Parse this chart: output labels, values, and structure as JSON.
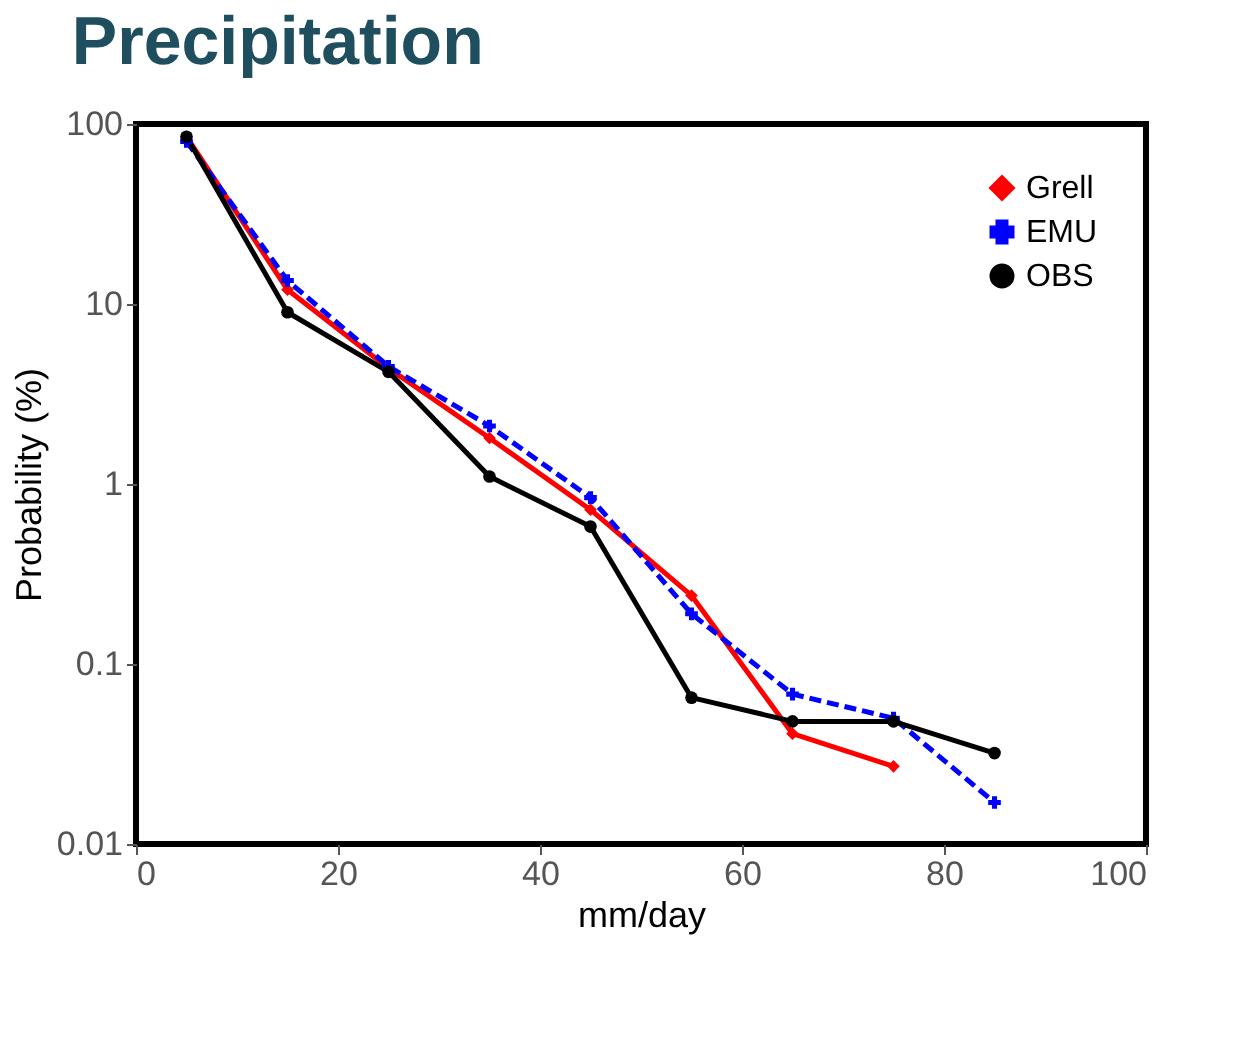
{
  "chart_data": {
    "type": "line",
    "title": "Precipitation",
    "xlabel": "mm/day",
    "ylabel": "Probability (%)",
    "log": "y",
    "xlim": [
      0,
      100
    ],
    "xticks": [
      0,
      20,
      40,
      60,
      80,
      100
    ],
    "ylim": [
      0.01,
      100
    ],
    "yticks": [
      0.01,
      0.1,
      1,
      10,
      100
    ],
    "grid": false,
    "legend": "top right",
    "x": [
      5,
      15,
      25,
      35,
      45,
      55,
      65,
      75,
      85
    ],
    "series": [
      {
        "name": "Grell",
        "color": "#ff0000",
        "marker": "diamond",
        "line_style": "solid",
        "values": [
          85,
          12,
          4.4,
          1.8,
          0.72,
          0.24,
          0.041,
          0.027,
          null
        ]
      },
      {
        "name": "EMU",
        "color": "#0000ff",
        "marker": "cross",
        "line_style": "dashed",
        "values": [
          80,
          13.5,
          4.5,
          2.1,
          0.84,
          0.19,
          0.068,
          0.05,
          0.017
        ]
      },
      {
        "name": "OBS",
        "color": "#000000",
        "marker": "circle",
        "line_style": "solid",
        "values": [
          85,
          9,
          4.2,
          1.1,
          0.58,
          0.065,
          0.048,
          0.048,
          0.032
        ]
      }
    ]
  }
}
